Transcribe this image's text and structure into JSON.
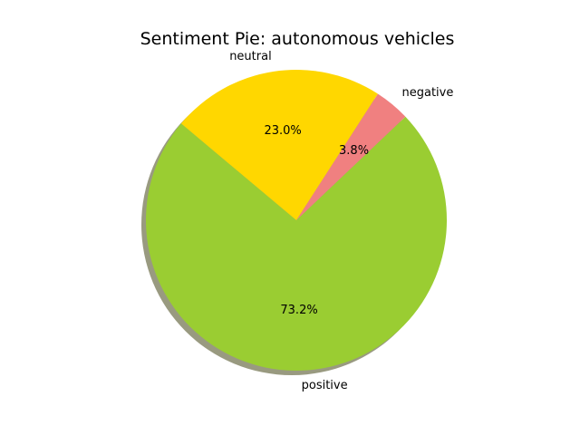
{
  "chart_data": {
    "type": "pie",
    "title": "Sentiment Pie: autonomous vehicles",
    "labels": [
      "positive",
      "negative",
      "neutral"
    ],
    "values": [
      73.2,
      3.8,
      23.0
    ],
    "percent_labels": [
      "73.2%",
      "3.8%",
      "23.0%"
    ],
    "colors": [
      "#9acd32",
      "#f08080",
      "#ffd700"
    ],
    "start_angle_deg": 140,
    "direction": "counterclockwise",
    "shadow": true,
    "shadow_color": "#999a80"
  }
}
